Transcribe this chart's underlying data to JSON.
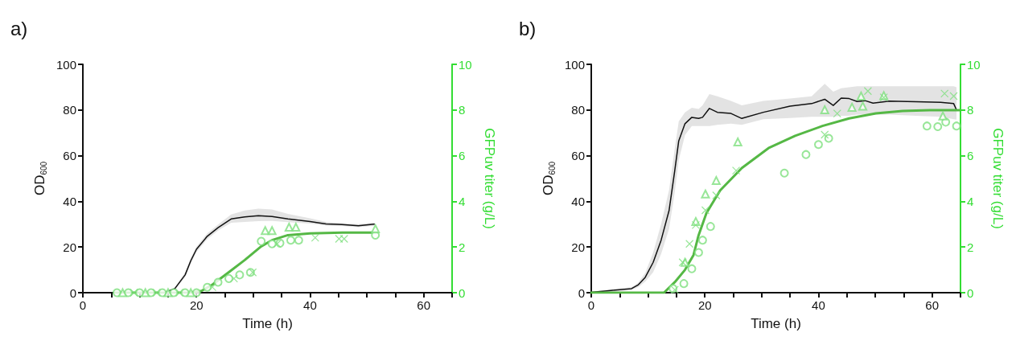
{
  "chart_data": [
    {
      "type": "line",
      "title": "a)",
      "xlabel": "Time (h)",
      "ylabel": "OD$_{600}$",
      "y2label": "GFPuv titer (g/L)",
      "xlim": [
        0,
        65
      ],
      "xticks": [
        0,
        {
          "value": 5,
          "label": null
        },
        {
          "value": 10,
          "label": null
        },
        {
          "value": 15,
          "label": null
        },
        20,
        {
          "value": 25,
          "label": null
        },
        {
          "value": 30,
          "label": null
        },
        {
          "value": 35,
          "label": null
        },
        40,
        {
          "value": 45,
          "label": null
        },
        {
          "value": 50,
          "label": null
        },
        {
          "value": 55,
          "label": null
        },
        60,
        {
          "value": 65,
          "label": null
        }
      ],
      "ylim": [
        0,
        100
      ],
      "yticks": [
        0,
        20,
        40,
        60,
        80,
        100
      ],
      "y2lim": [
        0,
        10
      ],
      "y2ticks": [
        0,
        2,
        4,
        6,
        8,
        10
      ],
      "grid": false,
      "series": [
        {
          "type": "line",
          "color": "#111111",
          "marker": "none",
          "x": [
            5.7,
            10,
            14.3,
            16.2,
            18,
            19,
            20,
            21.9,
            23.8,
            26.1,
            28.5,
            30.9,
            33.3,
            36.1,
            40,
            42.8,
            45.6,
            48.5,
            51.3
          ],
          "values": [
            0,
            0,
            0,
            1.8,
            7.8,
            14,
            19,
            24.7,
            28.5,
            32.3,
            33.2,
            33.7,
            33.4,
            32.3,
            31.2,
            30.1,
            29.8,
            29.3,
            30
          ],
          "lower": [
            0,
            0,
            0,
            1.2,
            6.8,
            12.8,
            17.8,
            23.4,
            27.2,
            30.6,
            31,
            31.3,
            31.4,
            30.9,
            30.3,
            29.4,
            29.2,
            28.7,
            29.3
          ],
          "upper": [
            0,
            0,
            0,
            2.4,
            8.8,
            15.2,
            20.2,
            26,
            29.8,
            34.2,
            36,
            36.8,
            36.4,
            34.5,
            32.6,
            31,
            30.5,
            30,
            30.7
          ]
        },
        {
          "type": "line",
          "color": "#55b845",
          "marker": "none",
          "axis": "y2",
          "x": [
            5.7,
            15,
            19,
            20.9,
            22.8,
            25.7,
            28.5,
            31.4,
            33.3,
            36.1,
            40,
            45.7,
            51.8
          ],
          "values": [
            0,
            0,
            0,
            0.08,
            0.35,
            0.9,
            1.43,
            2.03,
            2.3,
            2.52,
            2.6,
            2.63,
            2.63
          ]
        },
        {
          "type": "scatter",
          "color": "#7ee07e",
          "marker": "circle",
          "axis": "y2",
          "x": [
            6,
            8,
            10,
            12,
            14,
            16,
            18,
            20,
            21.9,
            23.8,
            25.7,
            27.6,
            29.5,
            31.4,
            33.3,
            34.7,
            36.6,
            38,
            51.5
          ],
          "values": [
            0,
            0,
            0,
            0,
            0,
            0,
            0,
            0,
            0.24,
            0.46,
            0.62,
            0.78,
            0.89,
            2.25,
            2.14,
            2.17,
            2.3,
            2.3,
            2.52
          ]
        },
        {
          "type": "scatter",
          "color": "#7ee07e",
          "marker": "triangle",
          "axis": "y2",
          "x": [
            7,
            11,
            15,
            19,
            32.1,
            33.3,
            36.3,
            37.5,
            51.5
          ],
          "values": [
            0,
            0,
            0,
            0,
            2.72,
            2.72,
            2.87,
            2.87,
            2.8
          ]
        },
        {
          "type": "scatter",
          "color": "#7ee07e",
          "marker": "cross",
          "axis": "y2",
          "x": [
            9,
            13,
            17,
            22.8,
            26.6,
            29.9,
            34.2,
            40.9,
            45.1,
            46
          ],
          "values": [
            0,
            0,
            0,
            0.24,
            0.62,
            0.89,
            2.14,
            2.41,
            2.36,
            2.36
          ]
        }
      ]
    },
    {
      "type": "line",
      "title": "b)",
      "xlabel": "Time (h)",
      "ylabel": "OD$_{600}$",
      "y2label": "GFPuv titer (g/L)",
      "xlim": [
        0,
        65
      ],
      "xticks": [
        0,
        {
          "value": 5,
          "label": null
        },
        {
          "value": 10,
          "label": null
        },
        {
          "value": 15,
          "label": null
        },
        20,
        {
          "value": 25,
          "label": null
        },
        {
          "value": 30,
          "label": null
        },
        {
          "value": 35,
          "label": null
        },
        40,
        {
          "value": 45,
          "label": null
        },
        {
          "value": 50,
          "label": null
        },
        {
          "value": 55,
          "label": null
        },
        60,
        {
          "value": 65,
          "label": null
        }
      ],
      "ylim": [
        0,
        100
      ],
      "yticks": [
        0,
        20,
        40,
        60,
        80,
        100
      ],
      "y2lim": [
        0,
        10
      ],
      "y2ticks": [
        0,
        2,
        4,
        6,
        8,
        10
      ],
      "grid": false,
      "series": [
        {
          "type": "line",
          "color": "#111111",
          "marker": "none",
          "x": [
            0,
            2.8,
            7.1,
            8.3,
            9.5,
            10.9,
            12.3,
            13.7,
            14.7,
            15.4,
            16.5,
            17.7,
            18.9,
            19.6,
            20.8,
            22.2,
            24.6,
            26.5,
            30.3,
            35,
            38.8,
            41.1,
            42.6,
            44,
            45.4,
            46.8,
            48.2,
            49.6,
            52.5,
            57.2,
            61.5,
            63.8,
            64.3
          ],
          "values": [
            0.2,
            0.8,
            1.8,
            3.5,
            6.7,
            13.3,
            23,
            36,
            53.5,
            66.5,
            74,
            76.8,
            76.3,
            76.8,
            80.7,
            79,
            78.5,
            76.3,
            79,
            81.7,
            82.8,
            84.7,
            82,
            85.2,
            85,
            83.7,
            84.1,
            83,
            83.9,
            83.6,
            83.4,
            82.8,
            80
          ],
          "lower": [
            0,
            0.3,
            1.2,
            2.5,
            4.8,
            9,
            17,
            28,
            44,
            58,
            69,
            73,
            73,
            73,
            73,
            73.5,
            74,
            73.5,
            76,
            76.5,
            77,
            77,
            77,
            77.5,
            77.5,
            78,
            78,
            78,
            78,
            77.5,
            77,
            76,
            75.8
          ],
          "upper": [
            0.4,
            1.3,
            2.4,
            4.5,
            8.6,
            17.6,
            30,
            45,
            63,
            75,
            79,
            81,
            80.5,
            82,
            87,
            86,
            84,
            82,
            84,
            85,
            86,
            91.5,
            88,
            89.5,
            90,
            90.4,
            90.4,
            90.4,
            90.4,
            90.4,
            90.4,
            90.4,
            90
          ]
        },
        {
          "type": "line",
          "color": "#55b845",
          "marker": "none",
          "axis": "y2",
          "x": [
            0,
            12.8,
            14.7,
            16.5,
            18,
            18.9,
            20.3,
            22.7,
            26.5,
            31.2,
            35.9,
            40.7,
            45.4,
            50.1,
            54.8,
            59.6,
            64.8
          ],
          "values": [
            0,
            0,
            0.46,
            1,
            1.65,
            2.52,
            3.5,
            4.48,
            5.46,
            6.33,
            6.87,
            7.3,
            7.63,
            7.85,
            7.96,
            7.99,
            7.99
          ]
        },
        {
          "type": "scatter",
          "color": "#7ee07e",
          "marker": "circle",
          "axis": "y2",
          "x": [
            14.4,
            16.3,
            17.7,
            18.9,
            19.6,
            21,
            34,
            37.8,
            40,
            41.8,
            59.1,
            61,
            62.4,
            64.3
          ],
          "values": [
            0.18,
            0.4,
            1.05,
            1.76,
            2.3,
            2.9,
            5.24,
            6.05,
            6.49,
            6.76,
            7.3,
            7.27,
            7.47,
            7.3
          ]
        },
        {
          "type": "scatter",
          "color": "#7ee07e",
          "marker": "triangle",
          "axis": "y2",
          "x": [
            16.5,
            18.4,
            20.1,
            22,
            25.8,
            41.1,
            45.9,
            47.5,
            47.8,
            51.5,
            61.9
          ],
          "values": [
            1.33,
            3.12,
            4.32,
            4.91,
            6.6,
            8.01,
            8.12,
            8.61,
            8.17,
            8.63,
            7.74
          ]
        },
        {
          "type": "scatter",
          "color": "#7ee07e",
          "marker": "cross",
          "axis": "y2",
          "x": [
            14.7,
            16.1,
            17.3,
            18.4,
            20.1,
            22,
            25.5,
            41.1,
            43.3,
            48.7,
            51.5,
            62.2,
            63.8
          ],
          "values": [
            0.13,
            1.33,
            2.14,
            2.96,
            3.61,
            4.26,
            5.35,
            6.92,
            7.85,
            8.83,
            8.55,
            8.72,
            8.61
          ]
        }
      ]
    }
  ]
}
